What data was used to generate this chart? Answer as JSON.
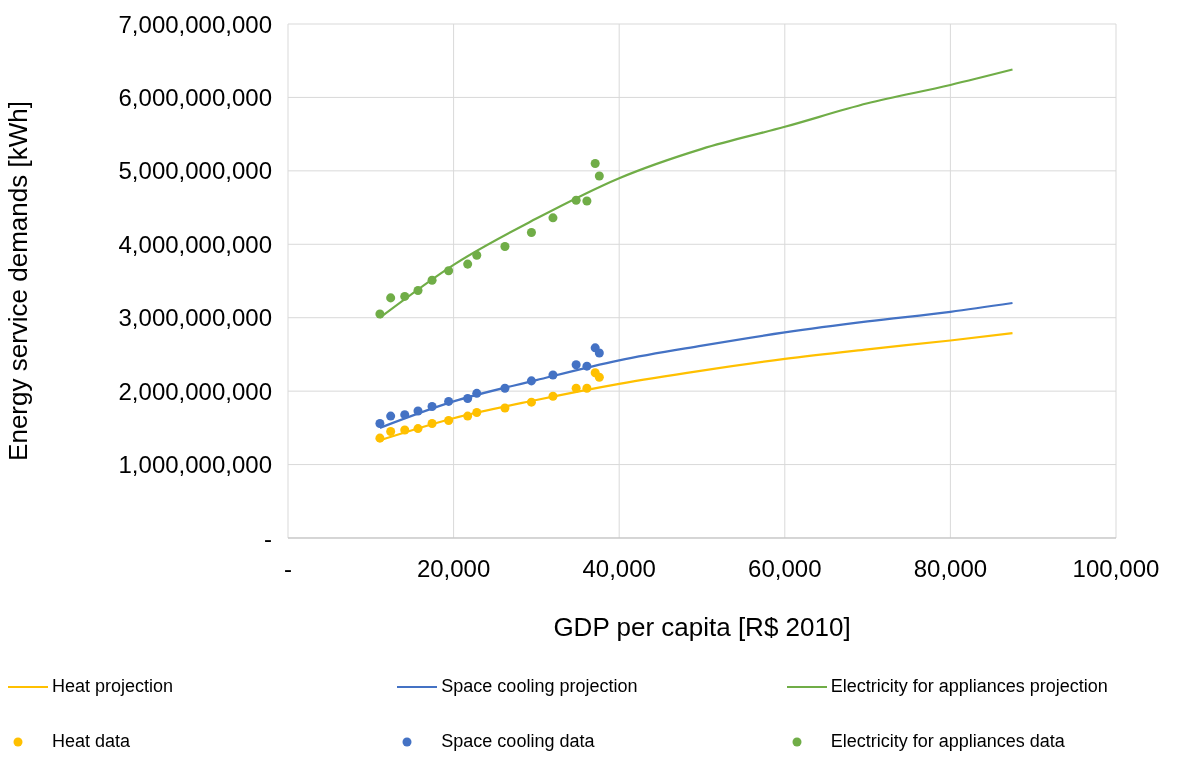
{
  "chart_data": {
    "type": "scatter",
    "xlabel": "GDP per capita [R$ 2010]",
    "ylabel": "Energy service demands [kWh]",
    "xlim": [
      0,
      100000
    ],
    "xticks": [
      {
        "value": 0,
        "label": "-"
      },
      {
        "value": 20000,
        "label": "20,000"
      },
      {
        "value": 40000,
        "label": "40,000"
      },
      {
        "value": 60000,
        "label": "60,000"
      },
      {
        "value": 80000,
        "label": "80,000"
      },
      {
        "value": 100000,
        "label": "100,000"
      }
    ],
    "ylim": [
      0,
      7000000000
    ],
    "yticks": [
      {
        "value": 0,
        "label": "-"
      },
      {
        "value": 1000000000,
        "label": "1,000,000,000"
      },
      {
        "value": 2000000000,
        "label": "2,000,000,000"
      },
      {
        "value": 3000000000,
        "label": "3,000,000,000"
      },
      {
        "value": 4000000000,
        "label": "4,000,000,000"
      },
      {
        "value": 5000000000,
        "label": "5,000,000,000"
      },
      {
        "value": 6000000000,
        "label": "6,000,000,000"
      },
      {
        "value": 7000000000,
        "label": "7,000,000,000"
      }
    ],
    "grid": true,
    "legend": "bottom",
    "series": [
      {
        "name": "Heat projection",
        "type": "line",
        "marker": "none",
        "color": "#ffc000",
        "x": [
          11100,
          20000,
          30000,
          40000,
          50000,
          60000,
          70000,
          80000,
          87500
        ],
        "values": [
          1330000000,
          1630000000,
          1880000000,
          2100000000,
          2280000000,
          2440000000,
          2570000000,
          2690000000,
          2790000000
        ]
      },
      {
        "name": "Space cooling projection",
        "type": "line",
        "marker": "none",
        "color": "#4472c4",
        "x": [
          11100,
          20000,
          30000,
          40000,
          50000,
          60000,
          70000,
          80000,
          87500
        ],
        "values": [
          1500000000,
          1860000000,
          2150000000,
          2420000000,
          2620000000,
          2800000000,
          2950000000,
          3080000000,
          3200000000
        ]
      },
      {
        "name": "Electricity for appliances projection",
        "type": "line",
        "marker": "none",
        "color": "#70ad47",
        "x": [
          11100,
          20000,
          30000,
          40000,
          50000,
          60000,
          70000,
          80000,
          87500
        ],
        "values": [
          3000000000,
          3720000000,
          4350000000,
          4900000000,
          5300000000,
          5600000000,
          5920000000,
          6170000000,
          6380000000
        ]
      },
      {
        "name": "Heat data",
        "marker": "circle",
        "color": "#ffc000",
        "x": [
          11100,
          12400,
          14100,
          15700,
          17400,
          19400,
          21700,
          22800,
          26200,
          29400,
          32000,
          34800,
          36100,
          37100,
          37600
        ],
        "values": [
          1360000000,
          1450000000,
          1470000000,
          1490000000,
          1560000000,
          1600000000,
          1660000000,
          1710000000,
          1770000000,
          1850000000,
          1930000000,
          2040000000,
          2040000000,
          2250000000,
          2190000000
        ]
      },
      {
        "name": "Space cooling data",
        "marker": "circle",
        "color": "#4472c4",
        "x": [
          11100,
          12400,
          14100,
          15700,
          17400,
          19400,
          21700,
          22800,
          26200,
          29400,
          32000,
          34800,
          36100,
          37100,
          37600
        ],
        "values": [
          1560000000,
          1660000000,
          1680000000,
          1730000000,
          1790000000,
          1860000000,
          1900000000,
          1970000000,
          2040000000,
          2140000000,
          2220000000,
          2360000000,
          2340000000,
          2590000000,
          2520000000
        ]
      },
      {
        "name": "Electricity for appliances data",
        "marker": "circle",
        "color": "#70ad47",
        "x": [
          11100,
          12400,
          14100,
          15700,
          17400,
          19400,
          21700,
          22800,
          26200,
          29400,
          32000,
          34800,
          36100,
          37100,
          37600
        ],
        "values": [
          3050000000,
          3270000000,
          3290000000,
          3370000000,
          3510000000,
          3640000000,
          3730000000,
          3850000000,
          3970000000,
          4160000000,
          4360000000,
          4600000000,
          4590000000,
          5100000000,
          4930000000
        ]
      }
    ]
  }
}
